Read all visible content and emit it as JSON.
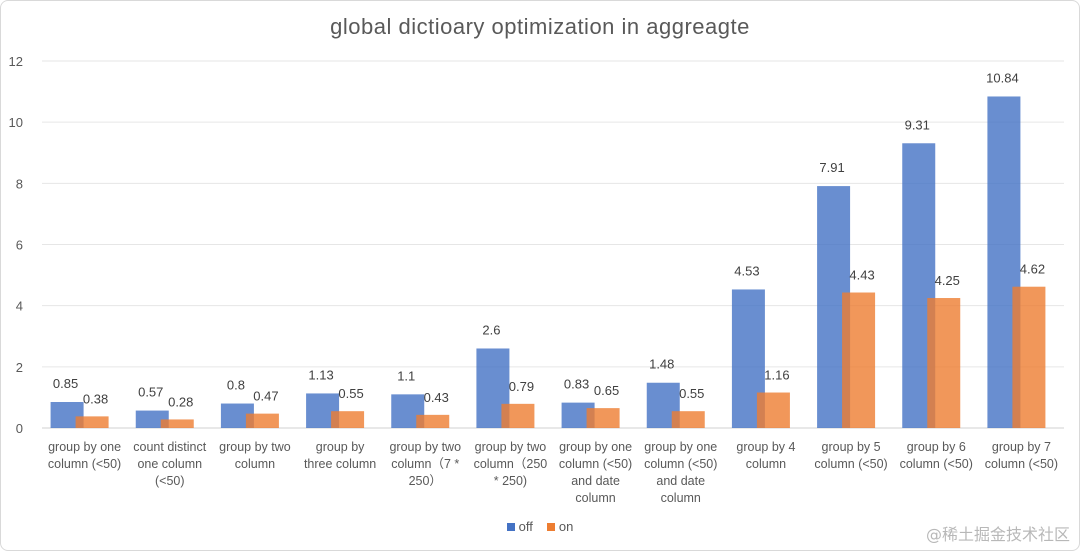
{
  "chart_data": {
    "type": "bar",
    "title": "global dictioary optimization in aggreagte",
    "categories": [
      [
        "group by one",
        "column (<50)"
      ],
      [
        "count distinct",
        "one column",
        "(<50)"
      ],
      [
        "group by two",
        "column"
      ],
      [
        "group by",
        "three column"
      ],
      [
        "group by two",
        "column（7 *",
        "250）"
      ],
      [
        "group by two",
        "column（250",
        "* 250)"
      ],
      [
        "group by one",
        "column (<50)",
        "and date",
        "column"
      ],
      [
        "group by one",
        "column (<50)",
        "and date",
        "column"
      ],
      [
        "group by 4",
        "column"
      ],
      [
        "group by 5",
        "column (<50)"
      ],
      [
        "group by 6",
        "column (<50)"
      ],
      [
        "group by 7",
        "column (<50)"
      ]
    ],
    "series": [
      {
        "name": "off",
        "color": "#4472C4",
        "values": [
          0.85,
          0.57,
          0.8,
          1.13,
          1.1,
          2.6,
          0.83,
          1.48,
          4.53,
          7.91,
          9.31,
          10.84
        ]
      },
      {
        "name": "on",
        "color": "#ED7D31",
        "values": [
          0.38,
          0.28,
          0.47,
          0.55,
          0.43,
          0.79,
          0.65,
          0.55,
          1.16,
          4.43,
          4.25,
          4.62
        ]
      }
    ],
    "ylim": [
      0,
      12
    ],
    "yticks": [
      0,
      2,
      4,
      6,
      8,
      10,
      12
    ],
    "grid": true,
    "legend_position": "bottom"
  },
  "watermark": "@稀土掘金技术社区"
}
